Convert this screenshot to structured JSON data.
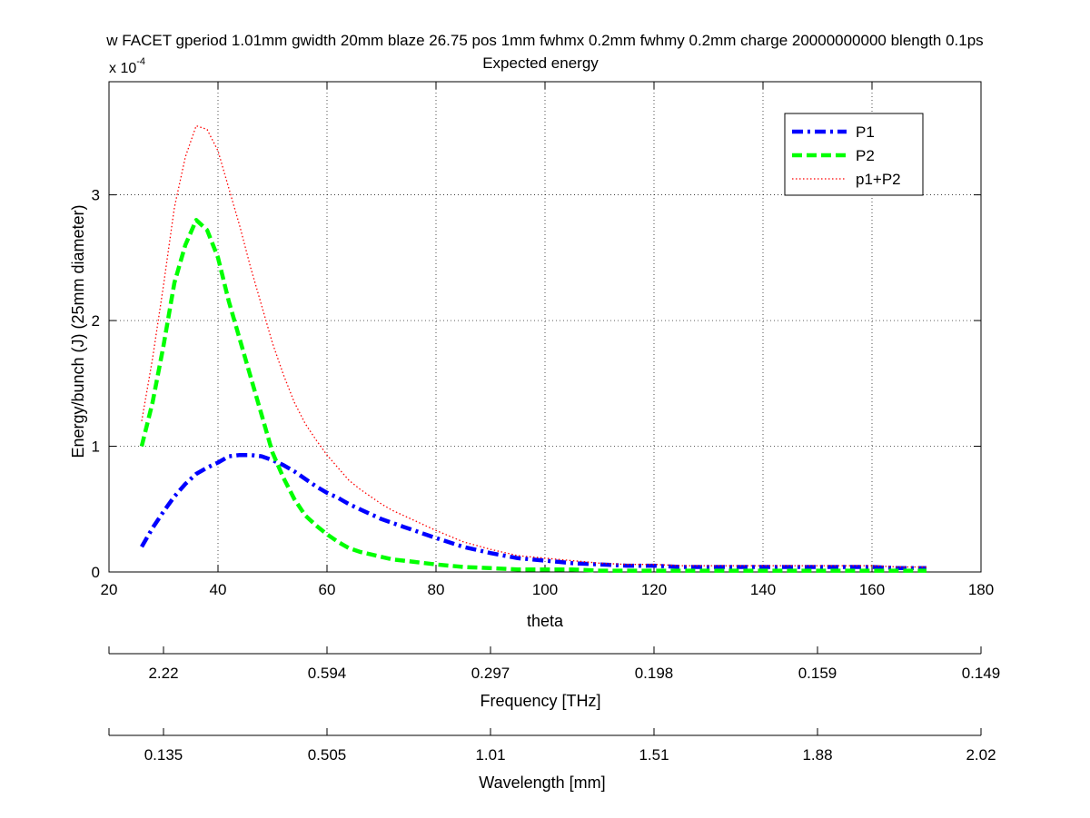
{
  "chart_data": {
    "type": "line",
    "title": "w FACET gperiod 1.01mm gwidth 20mm blaze 26.75 pos 1mm fwhmx 0.2mm fwhmy 0.2mm charge 20000000000 blength 0.1ps",
    "subtitle": "Expected energy",
    "xlabel": "theta",
    "ylabel": "Energy/bunch (J) (25mm diameter)",
    "y_exponent_label": "x 10",
    "y_exponent_power": "-4",
    "xlim": [
      20,
      180
    ],
    "ylim": [
      0,
      3.9
    ],
    "grid": true,
    "legend_placement": "top-right",
    "x_ticks": [
      "20",
      "40",
      "60",
      "80",
      "100",
      "120",
      "140",
      "160",
      "180"
    ],
    "x_tick_values": [
      20,
      40,
      60,
      80,
      100,
      120,
      140,
      160,
      180
    ],
    "y_ticks": [
      "0",
      "1",
      "2",
      "3"
    ],
    "y_tick_values": [
      0,
      1,
      2,
      3
    ],
    "x": [
      26,
      28,
      30,
      32,
      34,
      36,
      38,
      40,
      42,
      44,
      46,
      48,
      50,
      52,
      54,
      56,
      58,
      60,
      62,
      64,
      66,
      68,
      70,
      72,
      74,
      76,
      78,
      80,
      85,
      90,
      95,
      100,
      105,
      110,
      115,
      120,
      125,
      130,
      135,
      140,
      145,
      150,
      155,
      160,
      165,
      170
    ],
    "series": [
      {
        "name": "P1",
        "color": "#0000ff",
        "style": "dashdot",
        "values": [
          0.2,
          0.35,
          0.48,
          0.6,
          0.7,
          0.78,
          0.83,
          0.87,
          0.92,
          0.93,
          0.93,
          0.92,
          0.89,
          0.85,
          0.8,
          0.74,
          0.68,
          0.63,
          0.59,
          0.54,
          0.5,
          0.46,
          0.42,
          0.39,
          0.36,
          0.33,
          0.3,
          0.27,
          0.2,
          0.15,
          0.11,
          0.09,
          0.07,
          0.06,
          0.05,
          0.05,
          0.04,
          0.04,
          0.04,
          0.04,
          0.04,
          0.04,
          0.04,
          0.04,
          0.03,
          0.03
        ]
      },
      {
        "name": "P2",
        "color": "#00ff00",
        "style": "dashed",
        "values": [
          1.0,
          1.35,
          1.8,
          2.3,
          2.6,
          2.8,
          2.72,
          2.5,
          2.15,
          1.85,
          1.55,
          1.25,
          0.95,
          0.75,
          0.58,
          0.45,
          0.37,
          0.3,
          0.24,
          0.19,
          0.16,
          0.14,
          0.12,
          0.1,
          0.09,
          0.08,
          0.07,
          0.06,
          0.04,
          0.03,
          0.02,
          0.02,
          0.02,
          0.01,
          0.01,
          0.01,
          0.01,
          0.01,
          0.01,
          0.01,
          0.01,
          0.01,
          0.01,
          0.01,
          0.01,
          0.01
        ]
      },
      {
        "name": "p1+P2",
        "color": "#ff0000",
        "style": "dotted",
        "values": [
          1.2,
          1.7,
          2.28,
          2.9,
          3.3,
          3.55,
          3.52,
          3.35,
          3.05,
          2.75,
          2.42,
          2.12,
          1.82,
          1.57,
          1.35,
          1.18,
          1.05,
          0.93,
          0.83,
          0.73,
          0.66,
          0.6,
          0.54,
          0.49,
          0.45,
          0.41,
          0.37,
          0.33,
          0.24,
          0.18,
          0.13,
          0.11,
          0.09,
          0.07,
          0.06,
          0.06,
          0.05,
          0.05,
          0.05,
          0.05,
          0.05,
          0.05,
          0.05,
          0.05,
          0.04,
          0.04
        ]
      }
    ],
    "secondary_axes": [
      {
        "label": "Frequency [THz]",
        "ticks": [
          "2.22",
          "0.594",
          "0.297",
          "0.198",
          "0.159",
          "0.149"
        ],
        "tick_theta": [
          30,
          60,
          90,
          120,
          150,
          180
        ]
      },
      {
        "label": "Wavelength [mm]",
        "ticks": [
          "0.135",
          "0.505",
          "1.01",
          "1.51",
          "1.88",
          "2.02"
        ],
        "tick_theta": [
          30,
          60,
          90,
          120,
          150,
          180
        ]
      }
    ]
  }
}
